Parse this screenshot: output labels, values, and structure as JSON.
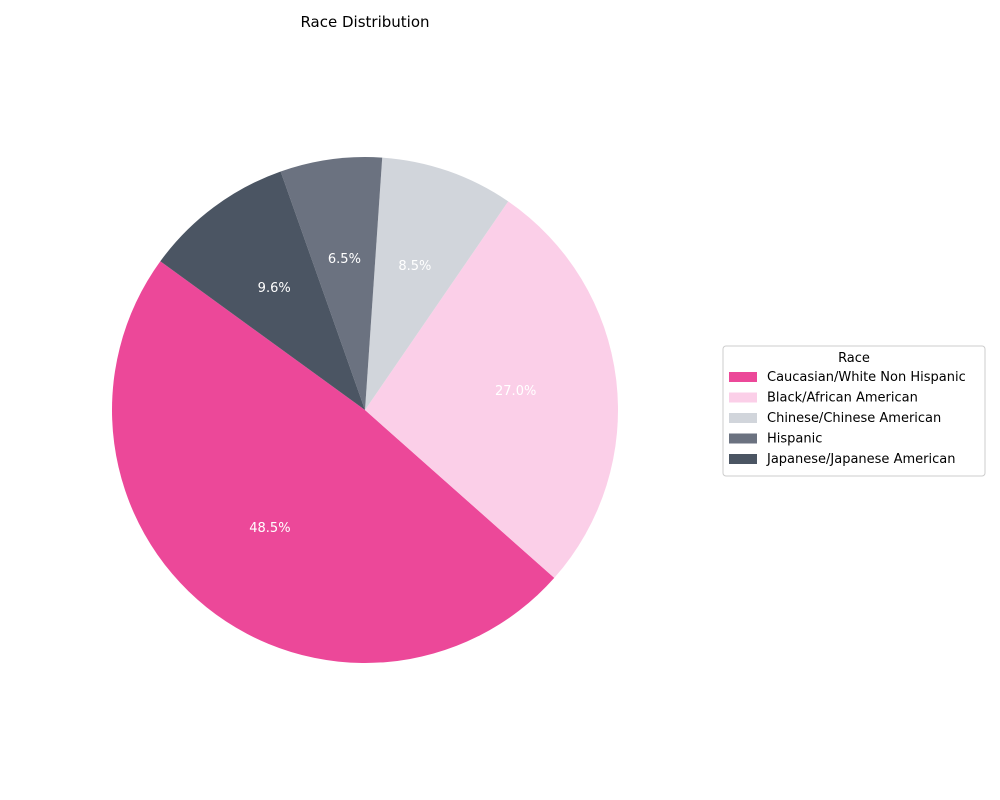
{
  "chart_data": {
    "type": "pie",
    "title": "Race Distribution",
    "legend_title": "Race",
    "legend_position": "center-right",
    "start_angle_deg": 144,
    "direction": "counterclockwise",
    "slices": [
      {
        "label": "Caucasian/White Non Hispanic",
        "value": 48.5,
        "pct_text": "48.5%",
        "color": "#ec4899"
      },
      {
        "label": "Black/African American",
        "value": 27.0,
        "pct_text": "27.0%",
        "color": "#fbcfe8"
      },
      {
        "label": "Chinese/Chinese American",
        "value": 8.5,
        "pct_text": "8.5%",
        "color": "#d1d5db"
      },
      {
        "label": "Hispanic",
        "value": 6.5,
        "pct_text": "6.5%",
        "color": "#6b7280"
      },
      {
        "label": "Japanese/Japanese American",
        "value": 9.6,
        "pct_text": "9.6%",
        "color": "#4b5563"
      }
    ]
  }
}
